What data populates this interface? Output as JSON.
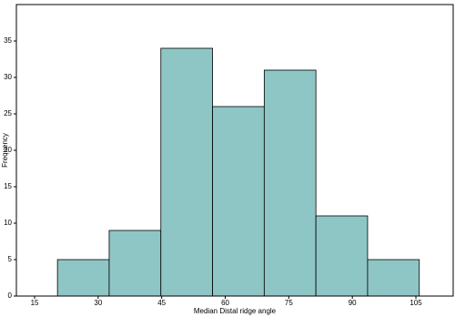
{
  "chart_data": {
    "type": "histogram",
    "xlabel": "Median Distal ridge angle",
    "ylabel": "Frequency",
    "bins": [
      20.4,
      32.6,
      44.8,
      57.0,
      69.2,
      81.4,
      93.6,
      105.8
    ],
    "values": [
      5,
      9,
      34,
      26,
      31,
      11,
      5
    ],
    "color": "#8ec6c5",
    "edgecolor": "#000000",
    "xlim": [
      10.7,
      113.8
    ],
    "xticks": [
      15,
      30,
      45,
      60,
      75,
      90,
      105
    ],
    "ylim": [
      0,
      40
    ],
    "yticks": [
      0,
      5,
      10,
      15,
      20,
      25,
      30,
      35
    ]
  }
}
